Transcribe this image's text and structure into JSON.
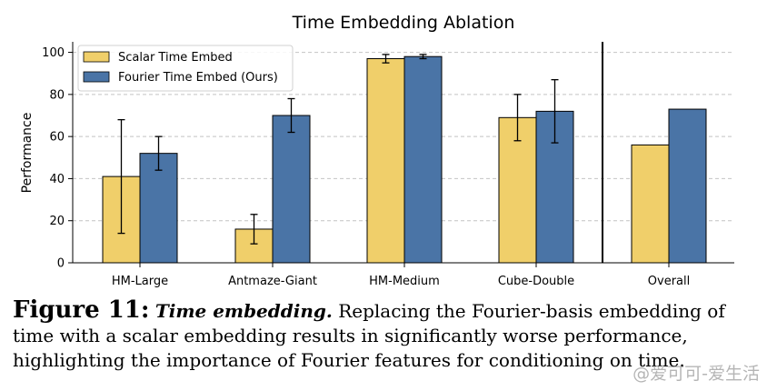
{
  "colors": {
    "scalar": "#f0cf6a",
    "fourier": "#4a74a6",
    "grid": "#c4c4c4"
  },
  "chart_data": {
    "type": "bar",
    "title": "Time Embedding Ablation",
    "xlabel": "",
    "ylabel": "Performance",
    "ylim": [
      0,
      100
    ],
    "yticks": [
      0,
      20,
      40,
      60,
      80,
      100
    ],
    "grid": true,
    "legend_position": "top-left",
    "categories": [
      "HM-Large",
      "Antmaze-Giant",
      "HM-Medium",
      "Cube-Double",
      "Overall"
    ],
    "series": [
      {
        "name": "Scalar Time Embed",
        "values": [
          41,
          16,
          97,
          69,
          56
        ],
        "error_low": [
          14,
          9,
          95,
          58,
          null
        ],
        "error_high": [
          68,
          23,
          99,
          80,
          null
        ]
      },
      {
        "name": "Fourier Time Embed (Ours)",
        "values": [
          52,
          70,
          98,
          72,
          73
        ],
        "error_low": [
          44,
          62,
          97,
          57,
          null
        ],
        "error_high": [
          60,
          78,
          99,
          87,
          null
        ]
      }
    ]
  },
  "caption": {
    "label": "Figure 11:",
    "heading": "Time embedding.",
    "text": "Replacing the Fourier-basis embedding of time with a scalar embedding results in significantly worse performance, highlighting the importance of Fourier features for conditioning on time."
  },
  "watermark": "@爱可可-爱生活"
}
